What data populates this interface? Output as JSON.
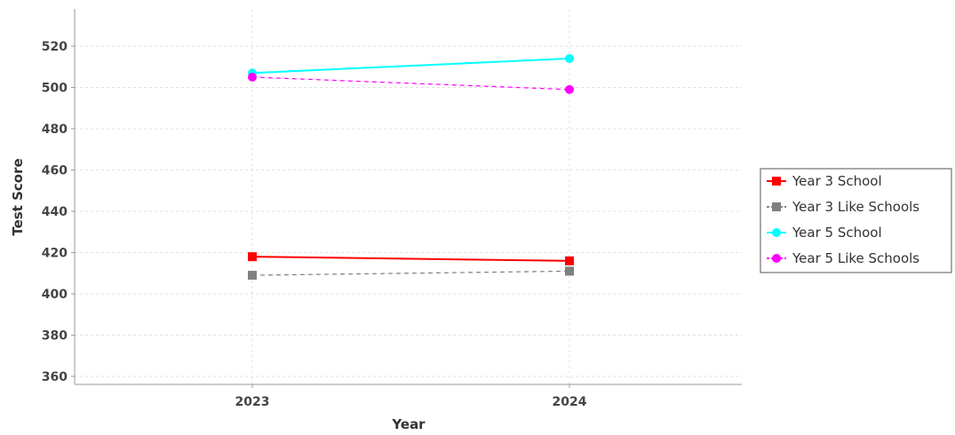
{
  "chart_data": {
    "type": "line",
    "xlabel": "Year",
    "ylabel": "Test Score",
    "categories": [
      "2023",
      "2024"
    ],
    "ylim": [
      355,
      535
    ],
    "yticks": [
      360,
      380,
      400,
      420,
      440,
      460,
      480,
      500,
      520
    ],
    "grid": true,
    "legend_position": "right",
    "series": [
      {
        "name": "Year 3 School",
        "values": [
          418,
          416
        ],
        "color": "#ff0000",
        "marker": "square",
        "dashed": false
      },
      {
        "name": "Year 3 Like Schools",
        "values": [
          409,
          411
        ],
        "color": "#808080",
        "marker": "square",
        "dashed": true
      },
      {
        "name": "Year 5 School",
        "values": [
          507,
          514
        ],
        "color": "#00ffff",
        "marker": "circle",
        "dashed": false
      },
      {
        "name": "Year 5 Like Schools",
        "values": [
          505,
          499
        ],
        "color": "#ff00ff",
        "marker": "circle",
        "dashed": true
      }
    ]
  }
}
